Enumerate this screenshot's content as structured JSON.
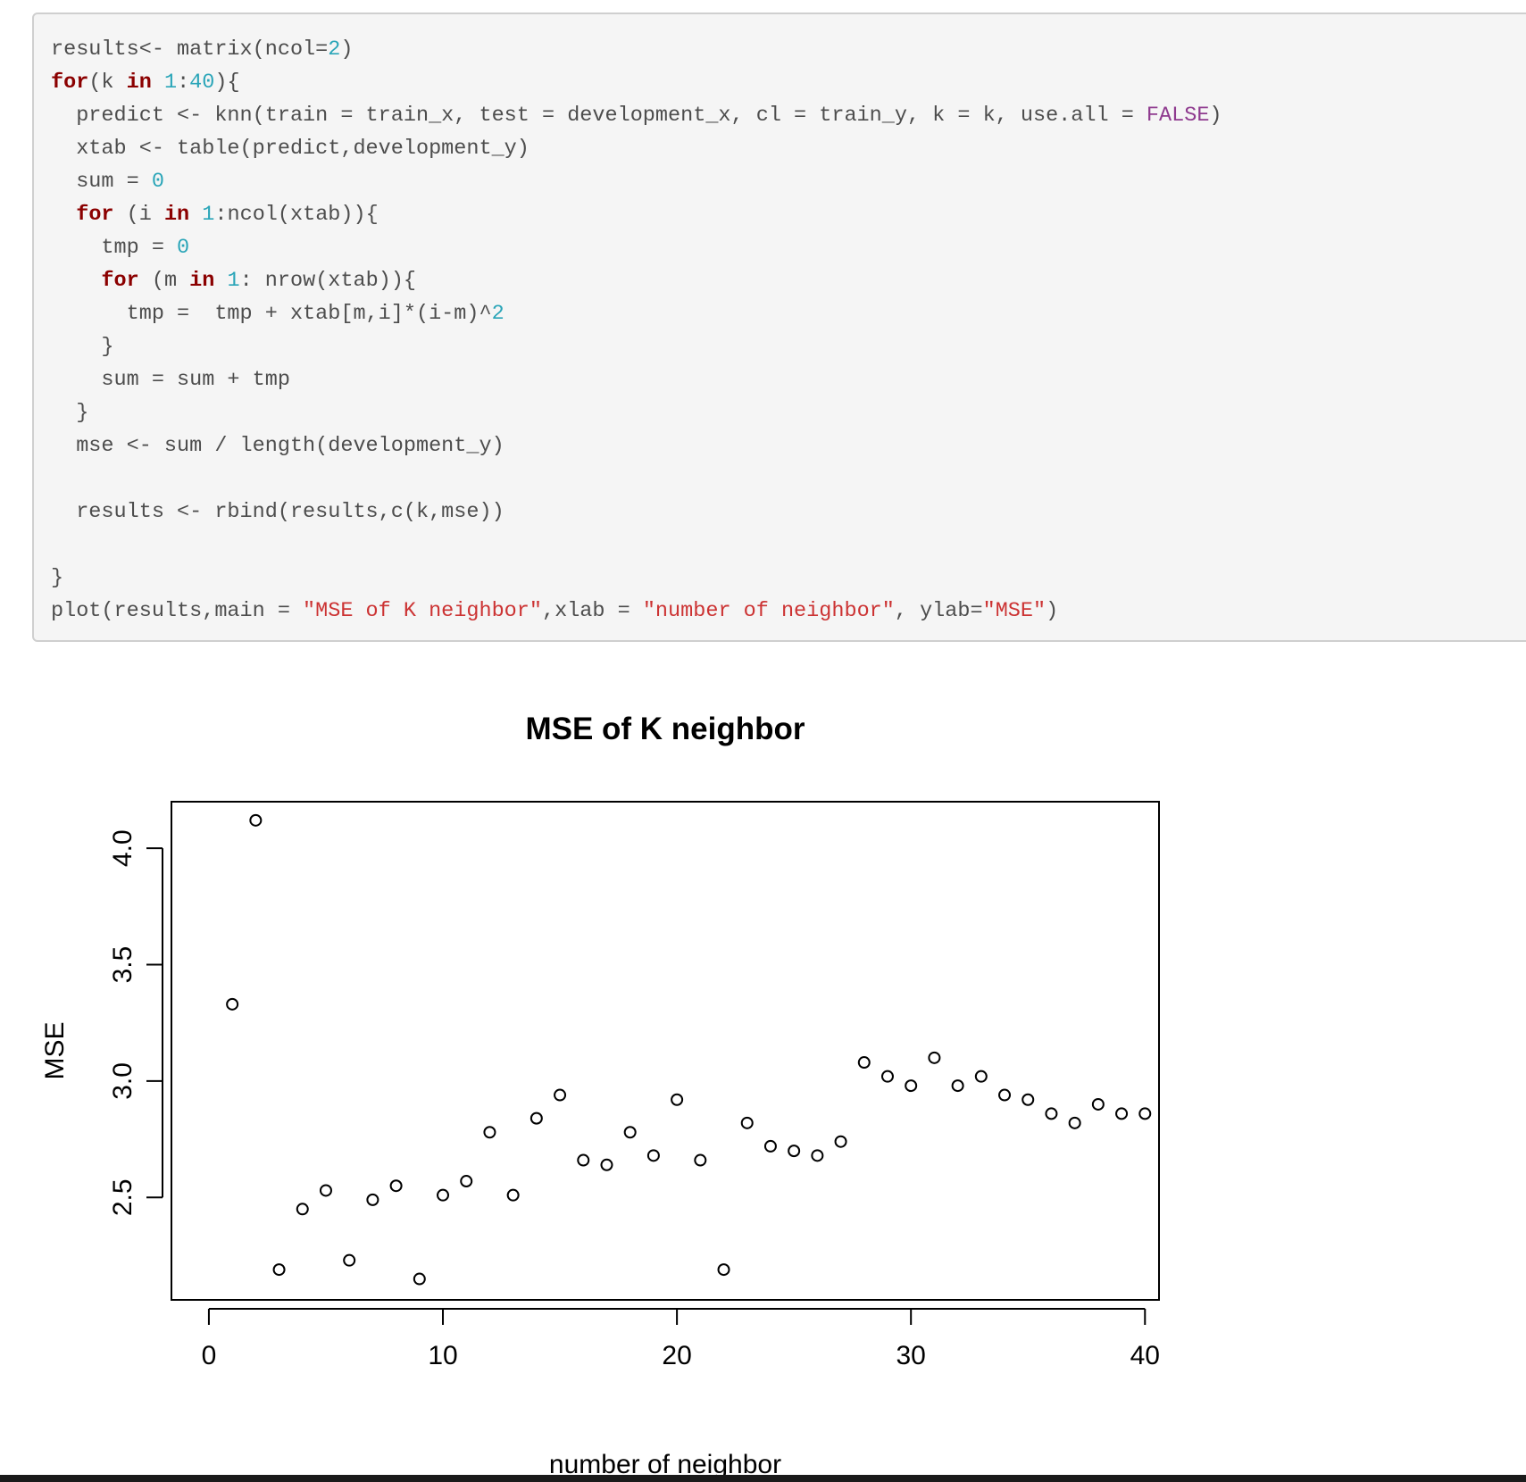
{
  "code": {
    "lines": [
      [
        {
          "t": "results<- matrix(ncol="
        },
        {
          "t": "2",
          "c": "num"
        },
        {
          "t": ")"
        }
      ],
      [
        {
          "t": "for",
          "c": "kw"
        },
        {
          "t": "(k "
        },
        {
          "t": "in",
          "c": "kw"
        },
        {
          "t": " "
        },
        {
          "t": "1",
          "c": "num"
        },
        {
          "t": ":"
        },
        {
          "t": "40",
          "c": "num"
        },
        {
          "t": "){"
        }
      ],
      [
        {
          "t": "  predict <- knn(train = train_x, test = development_x, cl = train_y, k = k, use.all = "
        },
        {
          "t": "FALSE",
          "c": "const"
        },
        {
          "t": ")"
        }
      ],
      [
        {
          "t": "  xtab <- table(predict,development_y)"
        }
      ],
      [
        {
          "t": "  sum = "
        },
        {
          "t": "0",
          "c": "num"
        }
      ],
      [
        {
          "t": "  "
        },
        {
          "t": "for",
          "c": "kw"
        },
        {
          "t": " (i "
        },
        {
          "t": "in",
          "c": "kw"
        },
        {
          "t": " "
        },
        {
          "t": "1",
          "c": "num"
        },
        {
          "t": ":ncol(xtab)){"
        }
      ],
      [
        {
          "t": "    tmp = "
        },
        {
          "t": "0",
          "c": "num"
        }
      ],
      [
        {
          "t": "    "
        },
        {
          "t": "for",
          "c": "kw"
        },
        {
          "t": " (m "
        },
        {
          "t": "in",
          "c": "kw"
        },
        {
          "t": " "
        },
        {
          "t": "1",
          "c": "num"
        },
        {
          "t": ": nrow(xtab)){"
        }
      ],
      [
        {
          "t": "      tmp =  tmp + xtab[m,i]*(i-m)^"
        },
        {
          "t": "2",
          "c": "num"
        }
      ],
      [
        {
          "t": "    }"
        }
      ],
      [
        {
          "t": "    sum = sum + tmp"
        }
      ],
      [
        {
          "t": "  }"
        }
      ],
      [
        {
          "t": "  mse <- sum / length(development_y)"
        }
      ],
      [
        {
          "t": ""
        }
      ],
      [
        {
          "t": "  results <- rbind(results,c(k,mse))"
        }
      ],
      [
        {
          "t": ""
        }
      ],
      [
        {
          "t": "}"
        }
      ],
      [
        {
          "t": "plot(results,main = "
        },
        {
          "t": "\"MSE of K neighbor\"",
          "c": "str"
        },
        {
          "t": ",xlab = "
        },
        {
          "t": "\"number of neighbor\"",
          "c": "str"
        },
        {
          "t": ", ylab="
        },
        {
          "t": "\"MSE\"",
          "c": "str"
        },
        {
          "t": ")"
        }
      ]
    ]
  },
  "chart_data": {
    "type": "scatter",
    "title": "MSE of K neighbor",
    "xlabel": "number of neighbor",
    "ylabel": "MSE",
    "xlim": [
      -1.6,
      40.6
    ],
    "ylim": [
      2.06,
      4.2
    ],
    "xticks": [
      0,
      10,
      20,
      30,
      40
    ],
    "yticks": [
      2.5,
      3.0,
      3.5,
      4.0
    ],
    "x": [
      1,
      2,
      3,
      4,
      5,
      6,
      7,
      8,
      9,
      10,
      11,
      12,
      13,
      14,
      15,
      16,
      17,
      18,
      19,
      20,
      21,
      22,
      23,
      24,
      25,
      26,
      27,
      28,
      29,
      30,
      31,
      32,
      33,
      34,
      35,
      36,
      37,
      38,
      39,
      40
    ],
    "y": [
      3.33,
      4.12,
      2.19,
      2.45,
      2.53,
      2.23,
      2.49,
      2.55,
      2.15,
      2.51,
      2.57,
      2.78,
      2.51,
      2.84,
      2.94,
      2.66,
      2.64,
      2.78,
      2.68,
      2.92,
      2.66,
      2.19,
      2.82,
      2.72,
      2.7,
      2.68,
      2.74,
      3.08,
      3.02,
      2.98,
      3.1,
      2.98,
      3.02,
      2.94,
      2.92,
      2.86,
      2.82,
      2.9,
      2.86,
      2.86
    ],
    "marker": "open-circle",
    "grid": false,
    "colors": {
      "marker": "#000000",
      "axis": "#000000",
      "text": "#000000"
    }
  }
}
